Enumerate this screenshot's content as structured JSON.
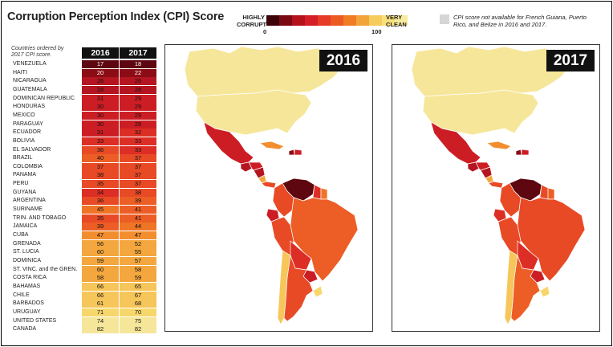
{
  "title": "Corruption Perception Index (CPI) Score",
  "legend": {
    "left_label": "HIGHLY CORRUPT",
    "right_label": "VERY CLEAN",
    "min_tick": "0",
    "max_tick": "100",
    "colors": [
      "#3d0408",
      "#7a0a12",
      "#b5121c",
      "#d41f26",
      "#e63b27",
      "#ec5a24",
      "#f07c24",
      "#f2a33a",
      "#f6cc5c",
      "#f7e07a",
      "#f6ec9c"
    ]
  },
  "na_note": "CPI score not available for French Guiana, Puerto Rico, and Belize in 2016 and 2017.",
  "table_note": "Countries ordered by 2017 CPI score.",
  "chart_data": {
    "type": "table",
    "columns": [
      "2016",
      "2017"
    ],
    "rows": [
      {
        "country": "VENEZUELA",
        "y2016": 17,
        "y2017": 18
      },
      {
        "country": "HAITI",
        "y2016": 20,
        "y2017": 22
      },
      {
        "country": "NICARAGUA",
        "y2016": 26,
        "y2017": 26
      },
      {
        "country": "GUATEMALA",
        "y2016": 28,
        "y2017": 28
      },
      {
        "country": "DOMINICAN REPUBLIC",
        "y2016": 31,
        "y2017": 29
      },
      {
        "country": "HONDURAS",
        "y2016": 30,
        "y2017": 29
      },
      {
        "country": "MEXICO",
        "y2016": 30,
        "y2017": 29
      },
      {
        "country": "PARAGUAY",
        "y2016": 30,
        "y2017": 29
      },
      {
        "country": "ECUADOR",
        "y2016": 31,
        "y2017": 32
      },
      {
        "country": "BOLIVIA",
        "y2016": 33,
        "y2017": 33
      },
      {
        "country": "EL SALVADOR",
        "y2016": 36,
        "y2017": 33
      },
      {
        "country": "BRAZIL",
        "y2016": 40,
        "y2017": 37
      },
      {
        "country": "COLOMBIA",
        "y2016": 37,
        "y2017": 37
      },
      {
        "country": "PANAMA",
        "y2016": 38,
        "y2017": 37
      },
      {
        "country": "PERU",
        "y2016": 35,
        "y2017": 37
      },
      {
        "country": "GUYANA",
        "y2016": 34,
        "y2017": 38
      },
      {
        "country": "ARGENTINA",
        "y2016": 36,
        "y2017": 39
      },
      {
        "country": "SURINAME",
        "y2016": 45,
        "y2017": 41
      },
      {
        "country": "TRIN. AND TOBAGO",
        "y2016": 35,
        "y2017": 41
      },
      {
        "country": "JAMAICA",
        "y2016": 39,
        "y2017": 44
      },
      {
        "country": "CUBA",
        "y2016": 47,
        "y2017": 47
      },
      {
        "country": "GRENADA",
        "y2016": 56,
        "y2017": 52
      },
      {
        "country": "ST. LUCIA",
        "y2016": 60,
        "y2017": 55
      },
      {
        "country": "DOMINICA",
        "y2016": 59,
        "y2017": 57
      },
      {
        "country": "ST. VINC. and the GREN.",
        "y2016": 60,
        "y2017": 58
      },
      {
        "country": "COSTA RICA",
        "y2016": 58,
        "y2017": 59
      },
      {
        "country": "BAHAMAS",
        "y2016": 66,
        "y2017": 65
      },
      {
        "country": "CHILE",
        "y2016": 66,
        "y2017": 67
      },
      {
        "country": "BARBADOS",
        "y2016": 61,
        "y2017": 68
      },
      {
        "country": "URUGUAY",
        "y2016": 71,
        "y2017": 70
      },
      {
        "country": "UNITED STATES",
        "y2016": 74,
        "y2017": 75
      },
      {
        "country": "CANADA",
        "y2016": 82,
        "y2017": 82
      }
    ]
  },
  "maps": [
    {
      "year": "2016",
      "scores": {
        "canada": 82,
        "usa": 74,
        "mexico": 30,
        "guatemala": 28,
        "honduras": 30,
        "nicaragua": 26,
        "costa_rica": 58,
        "panama": 38,
        "cuba": 47,
        "haiti": 20,
        "dominican_republic": 31,
        "venezuela": 17,
        "colombia": 37,
        "guyana": 34,
        "suriname": 45,
        "ecuador": 31,
        "peru": 35,
        "brazil": 40,
        "bolivia": 33,
        "paraguay": 30,
        "chile": 66,
        "argentina": 36,
        "uruguay": 71
      }
    },
    {
      "year": "2017",
      "scores": {
        "canada": 82,
        "usa": 75,
        "mexico": 29,
        "guatemala": 28,
        "honduras": 29,
        "nicaragua": 26,
        "costa_rica": 59,
        "panama": 37,
        "cuba": 47,
        "haiti": 22,
        "dominican_republic": 29,
        "venezuela": 18,
        "colombia": 37,
        "guyana": 38,
        "suriname": 41,
        "ecuador": 32,
        "peru": 37,
        "brazil": 37,
        "bolivia": 33,
        "paraguay": 29,
        "chile": 67,
        "argentina": 39,
        "uruguay": 70
      }
    }
  ]
}
